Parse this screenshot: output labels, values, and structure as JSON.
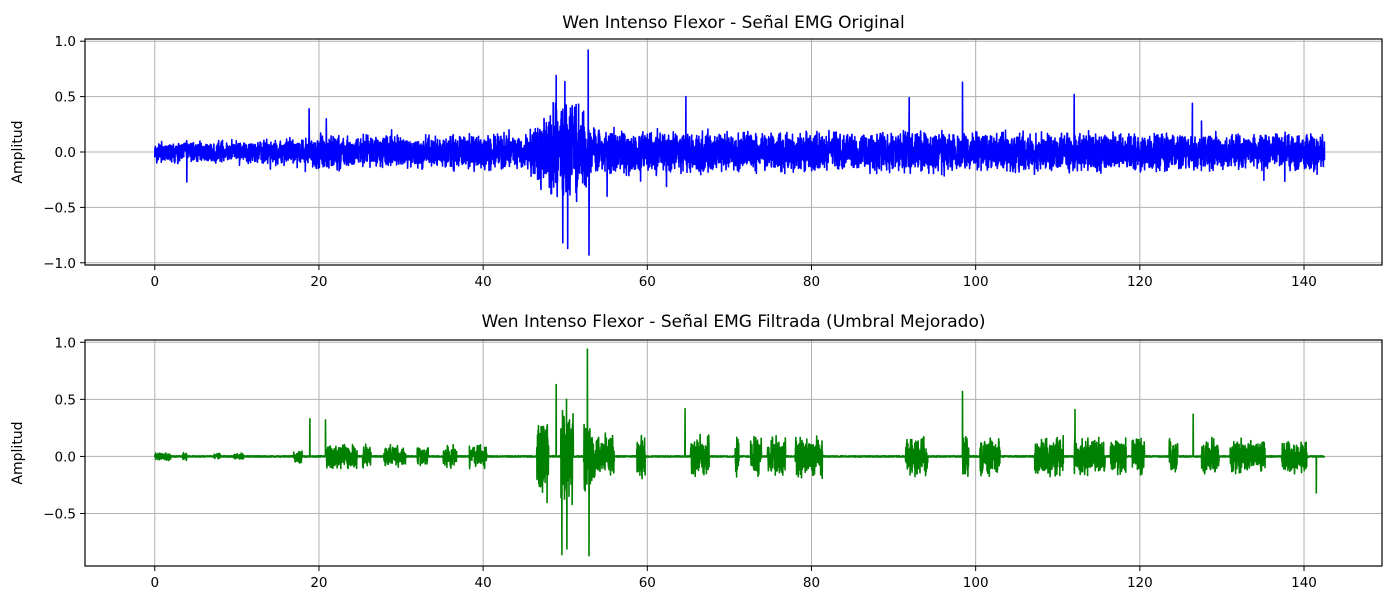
{
  "chart_data": [
    {
      "type": "line",
      "title": "Wen Intenso Flexor - Señal EMG Original",
      "xlabel": "",
      "ylabel": "Amplitud",
      "xlim": [
        -8.5,
        149.5
      ],
      "ylim": [
        -1.02,
        1.02
      ],
      "xticks": [
        0,
        20,
        40,
        60,
        80,
        100,
        120,
        140
      ],
      "yticks": [
        -1.0,
        -0.5,
        0.0,
        0.5,
        1.0
      ],
      "ytick_labels": [
        "−1.0",
        "−0.5",
        "0.0",
        "0.5",
        "1.0"
      ],
      "grid": true,
      "color": "#0000ff",
      "x_range": [
        0,
        142.5
      ],
      "amplitude_envelope": [
        {
          "x": 0,
          "amp": 0.09
        },
        {
          "x": 10,
          "amp": 0.08
        },
        {
          "x": 15,
          "amp": 0.1
        },
        {
          "x": 20,
          "amp": 0.13
        },
        {
          "x": 35,
          "amp": 0.13
        },
        {
          "x": 45,
          "amp": 0.15
        },
        {
          "x": 48,
          "amp": 0.35
        },
        {
          "x": 51,
          "amp": 0.4
        },
        {
          "x": 54,
          "amp": 0.18
        },
        {
          "x": 70,
          "amp": 0.16
        },
        {
          "x": 100,
          "amp": 0.16
        },
        {
          "x": 142.5,
          "amp": 0.14
        }
      ],
      "peaks": [
        {
          "x": 3.9,
          "y": -0.27
        },
        {
          "x": 18.8,
          "y": 0.39
        },
        {
          "x": 20.9,
          "y": 0.3
        },
        {
          "x": 48.9,
          "y": 0.69
        },
        {
          "x": 49.7,
          "y": -0.82
        },
        {
          "x": 50.3,
          "y": -0.87
        },
        {
          "x": 52.8,
          "y": 0.92
        },
        {
          "x": 52.9,
          "y": -0.93
        },
        {
          "x": 55.1,
          "y": -0.4
        },
        {
          "x": 64.7,
          "y": 0.5
        },
        {
          "x": 91.9,
          "y": 0.49
        },
        {
          "x": 98.4,
          "y": 0.63
        },
        {
          "x": 112.0,
          "y": 0.52
        },
        {
          "x": 126.4,
          "y": 0.44
        },
        {
          "x": 141.6,
          "y": -0.2
        }
      ]
    },
    {
      "type": "line",
      "title": "Wen Intenso Flexor - Señal EMG Filtrada (Umbral Mejorado)",
      "xlabel": "",
      "ylabel": "Amplitud",
      "xlim": [
        -8.5,
        149.5
      ],
      "ylim": [
        -0.96,
        1.02
      ],
      "xticks": [
        0,
        20,
        40,
        60,
        80,
        100,
        120,
        140
      ],
      "yticks": [
        -0.5,
        0.0,
        0.5,
        1.0
      ],
      "ytick_labels": [
        "−0.5",
        "0.0",
        "0.5",
        "1.0"
      ],
      "grid": true,
      "color": "#008000",
      "x_range": [
        0,
        142.5
      ],
      "amplitude_envelope": [
        {
          "x": 0,
          "amp": 0.03
        },
        {
          "x": 16,
          "amp": 0.02
        },
        {
          "x": 20,
          "amp": 0.1
        },
        {
          "x": 32,
          "amp": 0.07
        },
        {
          "x": 45,
          "amp": 0.1
        },
        {
          "x": 48,
          "amp": 0.35
        },
        {
          "x": 51,
          "amp": 0.4
        },
        {
          "x": 54,
          "amp": 0.15
        },
        {
          "x": 70,
          "amp": 0.15
        },
        {
          "x": 100,
          "amp": 0.14
        },
        {
          "x": 142.5,
          "amp": 0.12
        }
      ],
      "peaks": [
        {
          "x": 18.9,
          "y": 0.33
        },
        {
          "x": 20.8,
          "y": 0.32
        },
        {
          "x": 48.9,
          "y": 0.63
        },
        {
          "x": 49.6,
          "y": -0.86
        },
        {
          "x": 50.2,
          "y": -0.81
        },
        {
          "x": 52.7,
          "y": 0.94
        },
        {
          "x": 52.9,
          "y": -0.87
        },
        {
          "x": 64.6,
          "y": 0.42
        },
        {
          "x": 98.4,
          "y": 0.57
        },
        {
          "x": 112.1,
          "y": 0.41
        },
        {
          "x": 126.5,
          "y": 0.37
        },
        {
          "x": 141.5,
          "y": -0.32
        }
      ]
    }
  ]
}
